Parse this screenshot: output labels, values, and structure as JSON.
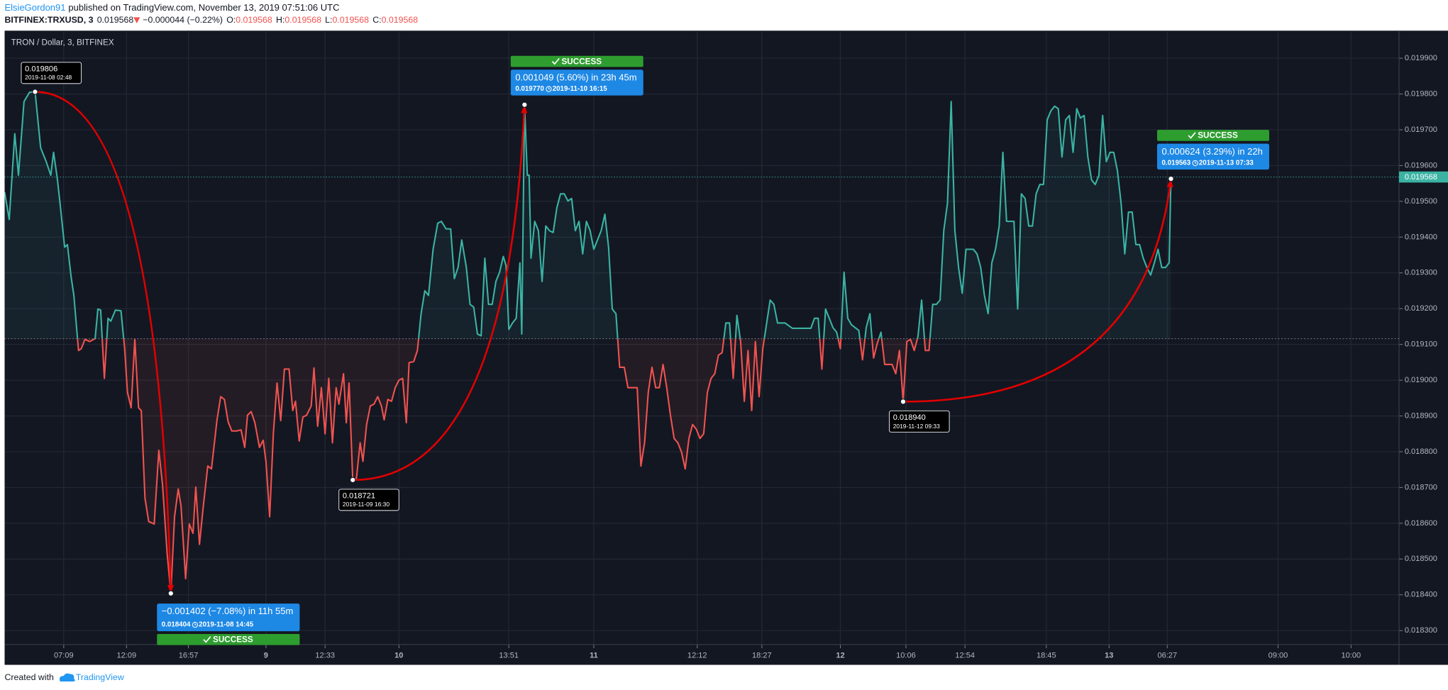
{
  "header": {
    "user": "ElsieGordon91",
    "published": "published on TradingView.com, November 13, 2019 07:51:06 UTC",
    "symbol": "BITFINEX:TRXUSD, 3",
    "last": "0.019568",
    "change": "−0.000044 (−0.22%)",
    "ohlc": [
      [
        "O:",
        "0.019568"
      ],
      [
        "H:",
        "0.019568"
      ],
      [
        "L:",
        "0.019568"
      ],
      [
        "C:",
        "0.019568"
      ]
    ]
  },
  "footer": {
    "created": "Created with",
    "brand": "TradingView"
  },
  "chart_data": {
    "type": "line",
    "title": "TRON / Dollar, 3, BITFINEX",
    "color": "#3bb3a3",
    "down_color": "#ef5350",
    "baseline": 0.019116,
    "grid": true,
    "xlim": [
      5,
      1515
    ],
    "ylim": [
      0.018261,
      0.019977
    ],
    "xticks": [
      {
        "value": 69,
        "label": "07:09"
      },
      {
        "value": 137,
        "label": "12:09"
      },
      {
        "value": 204,
        "label": "16:57"
      },
      {
        "value": 288,
        "label": "9"
      },
      {
        "value": 352,
        "label": "12:33"
      },
      {
        "value": 432,
        "label": "10"
      },
      {
        "value": 551,
        "label": "13:51"
      },
      {
        "value": 643,
        "label": "11"
      },
      {
        "value": 755,
        "label": "12:12"
      },
      {
        "value": 825,
        "label": "18:27"
      },
      {
        "value": 910,
        "label": "12"
      },
      {
        "value": 981,
        "label": "10:06"
      },
      {
        "value": 1045,
        "label": "12:54"
      },
      {
        "value": 1133,
        "label": "18:45"
      },
      {
        "value": 1201,
        "label": "13"
      },
      {
        "value": 1264,
        "label": "06:27"
      },
      {
        "value": 1384,
        "label": "09:00"
      },
      {
        "value": 1463,
        "label": "10:00"
      }
    ],
    "yticks": [
      {
        "value": 0.0183,
        "label": "0.018300"
      },
      {
        "value": 0.0184,
        "label": "0.018400"
      },
      {
        "value": 0.0185,
        "label": "0.018500"
      },
      {
        "value": 0.0186,
        "label": "0.018600"
      },
      {
        "value": 0.0187,
        "label": "0.018700"
      },
      {
        "value": 0.0188,
        "label": "0.018800"
      },
      {
        "value": 0.0189,
        "label": "0.018900"
      },
      {
        "value": 0.019,
        "label": "0.019000"
      },
      {
        "value": 0.0191,
        "label": "0.019100"
      },
      {
        "value": 0.0192,
        "label": "0.019200"
      },
      {
        "value": 0.0193,
        "label": "0.019300"
      },
      {
        "value": 0.0194,
        "label": "0.019400"
      },
      {
        "value": 0.0195,
        "label": "0.019500"
      },
      {
        "value": 0.0196,
        "label": "0.019600"
      },
      {
        "value": 0.0197,
        "label": "0.019700"
      },
      {
        "value": 0.0198,
        "label": "0.019800"
      },
      {
        "value": 0.0199,
        "label": "0.019900"
      }
    ],
    "x": [
      5,
      10,
      16,
      20,
      26,
      32,
      38,
      44,
      50,
      55,
      58,
      62,
      65,
      70,
      73,
      77,
      80,
      85,
      88,
      92,
      97,
      103,
      106,
      109,
      113,
      117,
      120,
      125,
      131,
      135,
      138,
      142,
      146,
      150,
      153,
      157,
      161,
      167,
      172,
      176,
      181,
      185,
      189,
      193,
      196,
      201,
      205,
      209,
      212,
      216,
      220,
      225,
      229,
      235,
      239,
      243,
      247,
      251,
      256,
      261,
      265,
      268,
      272,
      276,
      281,
      285,
      288,
      292,
      296,
      300,
      304,
      308,
      313,
      317,
      320,
      324,
      328,
      332,
      337,
      340,
      344,
      348,
      352,
      356,
      360,
      364,
      367,
      372,
      375,
      378,
      382,
      386,
      390,
      393,
      397,
      401,
      405,
      409,
      413,
      416,
      420,
      424,
      428,
      432,
      436,
      440,
      443,
      448,
      452,
      456,
      460,
      464,
      469,
      474,
      478,
      483,
      488,
      492,
      496,
      500,
      505,
      509,
      513,
      517,
      521,
      525,
      529,
      533,
      537,
      541,
      545,
      548,
      551,
      555,
      559,
      563,
      565,
      568,
      571,
      573,
      575,
      579,
      583,
      587,
      591,
      595,
      599,
      603,
      607,
      611,
      615,
      619,
      623,
      627,
      631,
      635,
      639,
      643,
      647,
      651,
      655,
      659,
      663,
      667,
      671,
      676,
      680,
      690,
      694,
      698,
      702,
      706,
      710,
      714,
      718,
      722,
      726,
      730,
      734,
      738,
      742,
      746,
      750,
      754,
      758,
      762,
      766,
      770,
      774,
      778,
      782,
      786,
      790,
      794,
      798,
      802,
      806,
      810,
      814,
      818,
      822,
      826,
      834,
      838,
      842,
      850,
      858,
      878,
      882,
      886,
      890,
      894,
      898,
      902,
      906,
      910,
      914,
      918,
      922,
      930,
      934,
      938,
      942,
      946,
      950,
      954,
      958,
      966,
      970,
      974,
      978,
      982,
      986,
      990,
      994,
      998,
      1002,
      1006,
      1010,
      1014,
      1018,
      1022,
      1026,
      1030,
      1034,
      1038,
      1042,
      1046,
      1054,
      1058,
      1062,
      1066,
      1070,
      1074,
      1078,
      1082,
      1086,
      1090,
      1098,
      1102,
      1106,
      1110,
      1114,
      1118,
      1122,
      1126,
      1130,
      1134,
      1138,
      1142,
      1146,
      1150,
      1154,
      1158,
      1162,
      1166,
      1170,
      1174,
      1178,
      1182,
      1186,
      1190,
      1194,
      1198,
      1202,
      1206,
      1210,
      1214,
      1218,
      1222,
      1226,
      1230,
      1234,
      1238,
      1242,
      1246,
      1250,
      1254,
      1258,
      1262,
      1266,
      1268
    ],
    "values": [
      0.019526,
      0.019449,
      0.019689,
      0.019573,
      0.019779,
      0.019805,
      0.019806,
      0.01965,
      0.019611,
      0.019573,
      0.019637,
      0.019565,
      0.019495,
      0.019372,
      0.019379,
      0.019289,
      0.019237,
      0.019083,
      0.019088,
      0.019114,
      0.019108,
      0.019116,
      0.019199,
      0.019196,
      0.019005,
      0.019173,
      0.019165,
      0.019196,
      0.019194,
      0.019088,
      0.018966,
      0.018923,
      0.019114,
      0.018923,
      0.018915,
      0.01867,
      0.018605,
      0.018598,
      0.018804,
      0.018708,
      0.018515,
      0.018404,
      0.018618,
      0.018696,
      0.018649,
      0.018445,
      0.018598,
      0.018572,
      0.018701,
      0.018541,
      0.018644,
      0.01876,
      0.018752,
      0.018889,
      0.018954,
      0.018946,
      0.018884,
      0.018858,
      0.018858,
      0.018861,
      0.018812,
      0.018902,
      0.018912,
      0.018881,
      0.018812,
      0.018832,
      0.018773,
      0.018618,
      0.01885,
      0.018992,
      0.018887,
      0.019031,
      0.019031,
      0.018915,
      0.018941,
      0.01883,
      0.018897,
      0.018902,
      0.018928,
      0.019034,
      0.018871,
      0.018979,
      0.01885,
      0.019005,
      0.018825,
      0.018979,
      0.018933,
      0.019018,
      0.018881,
      0.018992,
      0.018721,
      0.018726,
      0.018825,
      0.018773,
      0.018876,
      0.018928,
      0.018933,
      0.018954,
      0.018928,
      0.018889,
      0.018946,
      0.018941,
      0.018979,
      0.019,
      0.019005,
      0.018881,
      0.019049,
      0.019052,
      0.019083,
      0.019186,
      0.01925,
      0.019237,
      0.019366,
      0.019439,
      0.019444,
      0.019423,
      0.019423,
      0.019284,
      0.019315,
      0.019392,
      0.019315,
      0.019212,
      0.019204,
      0.019129,
      0.019124,
      0.019341,
      0.019212,
      0.019212,
      0.019276,
      0.019302,
      0.019346,
      0.01932,
      0.019142,
      0.01916,
      0.019173,
      0.019328,
      0.019129,
      0.01977,
      0.019573,
      0.019573,
      0.019341,
      0.019444,
      0.019418,
      0.019276,
      0.019431,
      0.019418,
      0.019413,
      0.019482,
      0.019521,
      0.019521,
      0.019501,
      0.019508,
      0.019418,
      0.019444,
      0.019353,
      0.019444,
      0.019418,
      0.019366,
      0.019392,
      0.019418,
      0.019464,
      0.019372,
      0.019199,
      0.019186,
      0.019036,
      0.019036,
      0.018979,
      0.018979,
      0.01876,
      0.018825,
      0.018966,
      0.019036,
      0.018979,
      0.018979,
      0.019044,
      0.018979,
      0.018902,
      0.018837,
      0.018825,
      0.018799,
      0.018752,
      0.018837,
      0.018876,
      0.018863,
      0.018837,
      0.01885,
      0.018966,
      0.019005,
      0.019018,
      0.01907,
      0.019077,
      0.01916,
      0.01916,
      0.019005,
      0.019181,
      0.019108,
      0.018941,
      0.019083,
      0.018915,
      0.019108,
      0.018954,
      0.019088,
      0.019224,
      0.019212,
      0.01916,
      0.01916,
      0.019145,
      0.019145,
      0.019173,
      0.019173,
      0.019031,
      0.019199,
      0.019173,
      0.019147,
      0.019134,
      0.019088,
      0.019302,
      0.019173,
      0.019155,
      0.019139,
      0.019057,
      0.019147,
      0.019186,
      0.019062,
      0.019103,
      0.019134,
      0.019044,
      0.019044,
      0.019018,
      0.019083,
      0.01894,
      0.019108,
      0.019114,
      0.019083,
      0.019121,
      0.019224,
      0.019083,
      0.019083,
      0.019212,
      0.019212,
      0.019224,
      0.019418,
      0.019495,
      0.019779,
      0.019418,
      0.019315,
      0.019243,
      0.019366,
      0.019366,
      0.019353,
      0.019315,
      0.019237,
      0.019186,
      0.019328,
      0.019366,
      0.019431,
      0.019637,
      0.019444,
      0.019444,
      0.019199,
      0.019521,
      0.019508,
      0.019431,
      0.019431,
      0.019521,
      0.019547,
      0.019547,
      0.019728,
      0.019753,
      0.019766,
      0.019759,
      0.019624,
      0.019728,
      0.01974,
      0.019637,
      0.019759,
      0.019733,
      0.01974,
      0.019624,
      0.01956,
      0.019547,
      0.019573,
      0.01974,
      0.019611,
      0.019637,
      0.019637,
      0.019586,
      0.019495,
      0.019353,
      0.01947,
      0.01947,
      0.019379,
      0.019379,
      0.019341,
      0.019315,
      0.019294,
      0.019328,
      0.019366,
      0.019315,
      0.019315,
      0.019328,
      0.019568
    ],
    "projections": [
      {
        "start": {
          "x": 38,
          "value": 0.019806,
          "label": "0.019806",
          "date": "2019-11-08 02:48"
        },
        "end": {
          "x": 185,
          "value": 0.018404,
          "label": "0.018404",
          "date": "2019-11-08  14:45"
        },
        "change": "−0.001402 (−7.08%) in 11h 55m",
        "status": "SUCCESS"
      },
      {
        "start": {
          "x": 382,
          "value": 0.018721,
          "label": "0.018721",
          "date": "2019-11-09 16:30"
        },
        "end": {
          "x": 568,
          "value": 0.01977,
          "label": "0.019770",
          "date": "2019-11-10  16:15"
        },
        "change": "0.001049 (5.60%) in 23h 45m",
        "status": "SUCCESS"
      },
      {
        "start": {
          "x": 978,
          "value": 0.01894,
          "label": "0.018940",
          "date": "2019-11-12 09:33"
        },
        "end": {
          "x": 1268,
          "value": 0.019563,
          "label": "0.019563",
          "date": "2019-11-13  07:33"
        },
        "change": "0.000624 (3.29%) in 22h",
        "status": "SUCCESS"
      }
    ]
  }
}
